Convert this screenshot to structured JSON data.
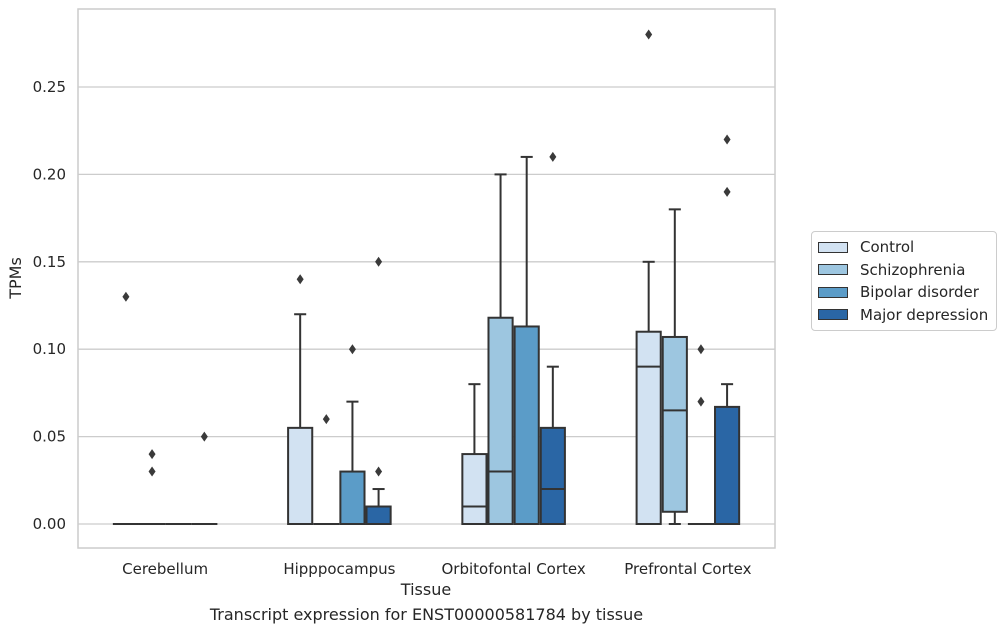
{
  "caption": "Transcript expression for ENST00000581784 by tissue",
  "chart_data": {
    "type": "box",
    "title": "",
    "xlabel": "Tissue",
    "ylabel": "TPMs",
    "ylim": [
      -0.0135,
      0.294
    ],
    "yticks": [
      0.0,
      0.05,
      0.1,
      0.15,
      0.2,
      0.25
    ],
    "ytick_labels": [
      "0.00",
      "0.05",
      "0.10",
      "0.15",
      "0.20",
      "0.25"
    ],
    "grid": "horizontal",
    "legend_position": "right",
    "categories": [
      "Cerebellum",
      "Hipppocampus",
      "Orbitofontal Cortex",
      "Prefrontal Cortex"
    ],
    "series": [
      {
        "name": "Control",
        "color": "#d2e2f2",
        "boxes": [
          {
            "q1": 0.0,
            "median": 0.0,
            "q3": 0.0,
            "whislo": 0.0,
            "whishi": 0.0,
            "fliers": [
              0.13
            ]
          },
          {
            "q1": 0.0,
            "median": 0.0,
            "q3": 0.055,
            "whislo": 0.0,
            "whishi": 0.12,
            "fliers": [
              0.14
            ]
          },
          {
            "q1": 0.0,
            "median": 0.01,
            "q3": 0.04,
            "whislo": 0.0,
            "whishi": 0.08,
            "fliers": []
          },
          {
            "q1": 0.0,
            "median": 0.09,
            "q3": 0.11,
            "whislo": 0.0,
            "whishi": 0.15,
            "fliers": [
              0.28
            ]
          }
        ]
      },
      {
        "name": "Schizophrenia",
        "color": "#9dc6e0",
        "boxes": [
          {
            "q1": 0.0,
            "median": 0.0,
            "q3": 0.0,
            "whislo": 0.0,
            "whishi": 0.0,
            "fliers": [
              0.03,
              0.04
            ]
          },
          {
            "q1": 0.0,
            "median": 0.0,
            "q3": 0.0,
            "whislo": 0.0,
            "whishi": 0.0,
            "fliers": [
              0.06
            ]
          },
          {
            "q1": 0.0,
            "median": 0.03,
            "q3": 0.118,
            "whislo": 0.0,
            "whishi": 0.2,
            "fliers": []
          },
          {
            "q1": 0.007,
            "median": 0.065,
            "q3": 0.107,
            "whislo": 0.0,
            "whishi": 0.18,
            "fliers": []
          }
        ]
      },
      {
        "name": "Bipolar disorder",
        "color": "#5b9cc8",
        "boxes": [
          {
            "q1": 0.0,
            "median": 0.0,
            "q3": 0.0,
            "whislo": 0.0,
            "whishi": 0.0,
            "fliers": []
          },
          {
            "q1": 0.0,
            "median": 0.0,
            "q3": 0.03,
            "whislo": 0.0,
            "whishi": 0.07,
            "fliers": [
              0.1
            ]
          },
          {
            "q1": 0.0,
            "median": 0.0,
            "q3": 0.113,
            "whislo": 0.0,
            "whishi": 0.21,
            "fliers": []
          },
          {
            "q1": 0.0,
            "median": 0.0,
            "q3": 0.0,
            "whislo": 0.0,
            "whishi": 0.0,
            "fliers": [
              0.07,
              0.1
            ]
          }
        ]
      },
      {
        "name": "Major depression",
        "color": "#2a66a5",
        "boxes": [
          {
            "q1": 0.0,
            "median": 0.0,
            "q3": 0.0,
            "whislo": 0.0,
            "whishi": 0.0,
            "fliers": [
              0.05
            ]
          },
          {
            "q1": 0.0,
            "median": 0.0,
            "q3": 0.01,
            "whislo": 0.0,
            "whishi": 0.02,
            "fliers": [
              0.03,
              0.15
            ]
          },
          {
            "q1": 0.0,
            "median": 0.02,
            "q3": 0.055,
            "whislo": 0.0,
            "whishi": 0.09,
            "fliers": [
              0.21
            ]
          },
          {
            "q1": 0.0,
            "median": 0.0,
            "q3": 0.067,
            "whislo": 0.0,
            "whishi": 0.08,
            "fliers": [
              0.19,
              0.22
            ]
          }
        ]
      }
    ]
  }
}
